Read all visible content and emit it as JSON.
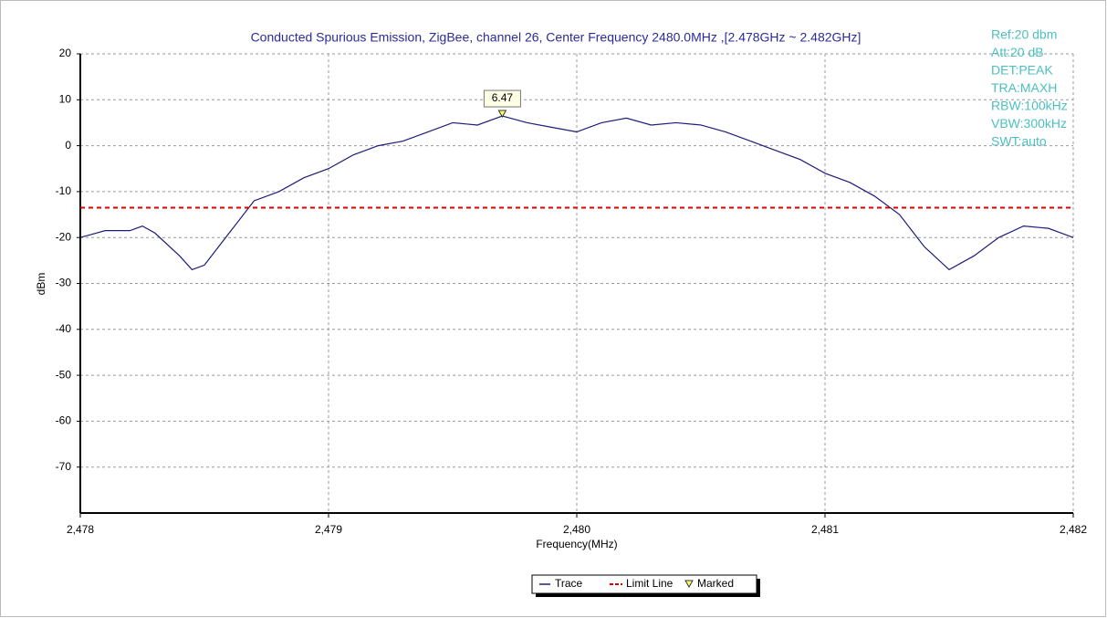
{
  "chart_data": {
    "type": "line",
    "title": "Conducted Spurious Emission, ZigBee, channel 26, Center Frequency 2480.0MHz ,[2.478GHz ~ 2.482GHz]",
    "xlabel": "Frequency(MHz)",
    "ylabel": "dBm",
    "x": [
      2478.0,
      2478.1,
      2478.2,
      2478.25,
      2478.3,
      2478.4,
      2478.45,
      2478.5,
      2478.6,
      2478.7,
      2478.8,
      2478.9,
      2479.0,
      2479.1,
      2479.2,
      2479.3,
      2479.4,
      2479.5,
      2479.6,
      2479.7,
      2479.8,
      2479.9,
      2480.0,
      2480.1,
      2480.2,
      2480.3,
      2480.4,
      2480.5,
      2480.6,
      2480.7,
      2480.8,
      2480.9,
      2481.0,
      2481.1,
      2481.2,
      2481.3,
      2481.4,
      2481.5,
      2481.6,
      2481.7,
      2481.8,
      2481.9,
      2482.0
    ],
    "series": [
      {
        "name": "Trace",
        "color": "#1c1c7a",
        "values": [
          -20,
          -18.5,
          -18.5,
          -17.5,
          -19,
          -24,
          -27,
          -26,
          -19,
          -12,
          -10,
          -7,
          -5,
          -2,
          0,
          1,
          3,
          5,
          4.5,
          6.47,
          5,
          4,
          3,
          5,
          6,
          4.5,
          5,
          4.5,
          3,
          1,
          -1,
          -3,
          -6,
          -8,
          -11,
          -15,
          -22,
          -27,
          -24,
          -20,
          -17.5,
          -18,
          -20
        ]
      }
    ],
    "limit_line": {
      "name": "Limit Line",
      "value": -13.5,
      "color": "#dd0000"
    },
    "marker": {
      "name": "Marked",
      "x": 2479.7,
      "y": 6.47,
      "color": "#ffff66"
    },
    "xlim": [
      2478,
      2482
    ],
    "xticks": [
      {
        "value": 2478,
        "label": "2,478"
      },
      {
        "value": 2479,
        "label": "2,479"
      },
      {
        "value": 2480,
        "label": "2,480"
      },
      {
        "value": 2481,
        "label": "2,481"
      },
      {
        "value": 2482,
        "label": "2,482"
      }
    ],
    "ylim": [
      -80,
      20
    ],
    "yticks": [
      20,
      10,
      0,
      -10,
      -20,
      -30,
      -40,
      -50,
      -60,
      -70
    ],
    "grid": true,
    "annotations": [
      "Ref:20 dbm",
      "Att:20 dB",
      "DET:PEAK",
      "TRA:MAXH",
      "RBW:100kHz",
      "VBW:300kHz",
      "SWT:auto"
    ]
  }
}
